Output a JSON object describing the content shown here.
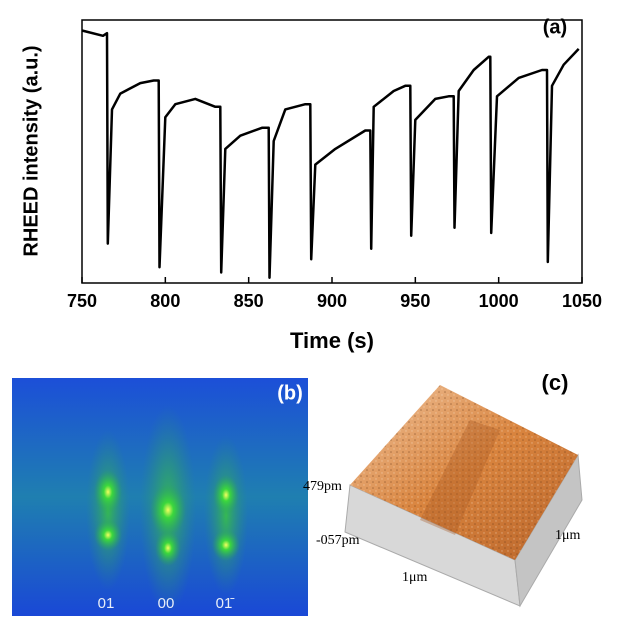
{
  "chart_data": {
    "type": "line",
    "panel_label": "(a)",
    "ylabel": "RHEED intensity (a.u.)",
    "xlabel": "Time (s)",
    "x": [
      750,
      762.6,
      765,
      765.5,
      768,
      773,
      785,
      793,
      796,
      796.5,
      800,
      806,
      818,
      830,
      833,
      833.5,
      836,
      845,
      858,
      862,
      862.5,
      865,
      872,
      884,
      887,
      887.5,
      890,
      902,
      920,
      923,
      923.5,
      925,
      937,
      944,
      947,
      947.5,
      950,
      962,
      970,
      973,
      973.5,
      976,
      985,
      994,
      995,
      995.5,
      999,
      1012,
      1026,
      1029,
      1029.5,
      1032,
      1039,
      1048
    ],
    "values": [
      0.96,
      0.94,
      0.95,
      0.15,
      0.66,
      0.72,
      0.76,
      0.77,
      0.77,
      0.06,
      0.63,
      0.68,
      0.7,
      0.67,
      0.67,
      0.04,
      0.51,
      0.56,
      0.59,
      0.59,
      0.02,
      0.54,
      0.66,
      0.68,
      0.68,
      0.09,
      0.45,
      0.51,
      0.58,
      0.58,
      0.13,
      0.67,
      0.73,
      0.75,
      0.75,
      0.18,
      0.62,
      0.7,
      0.71,
      0.71,
      0.21,
      0.73,
      0.81,
      0.86,
      0.86,
      0.19,
      0.71,
      0.78,
      0.81,
      0.81,
      0.08,
      0.75,
      0.83,
      0.89
    ],
    "color": "#000000",
    "xlim": [
      750,
      1050
    ],
    "xticks": [
      750,
      800,
      850,
      900,
      950,
      1000,
      1050
    ],
    "ylim": [
      0,
      1
    ]
  },
  "panel_b": {
    "label": "(b)",
    "spot_labels": [
      "01",
      "00",
      "01̄"
    ]
  },
  "panel_c": {
    "label": "(c)",
    "z_top": "479pm",
    "z_bottom": "-057pm",
    "x_size": "1μm",
    "y_size": "1μm"
  }
}
